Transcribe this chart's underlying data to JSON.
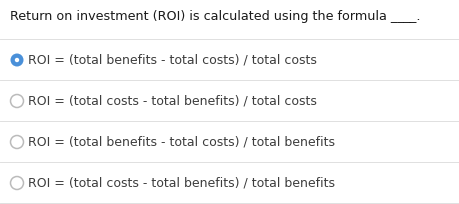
{
  "question": "Return on investment (ROI) is calculated using the formula ____.",
  "options_display": [
    "ROI = (total benefits - total costs) / total costs",
    "ROI = (total costs - total benefits) / total costs",
    "ROI = (total benefits - total costs) / total benefits",
    "ROI = (total costs - total benefits) / total benefits"
  ],
  "correct_index": 0,
  "bg_color": "#ffffff",
  "question_color": "#1a1a1a",
  "option_color": "#3d3d3d",
  "selected_circle_fill": "#4a90d9",
  "selected_circle_edge": "#4a90d9",
  "unselected_circle_edge": "#bbbbbb",
  "divider_color": "#e0e0e0",
  "question_fontsize": 9.2,
  "option_fontsize": 9.0,
  "fig_width": 4.6,
  "fig_height": 2.04,
  "dpi": 100
}
